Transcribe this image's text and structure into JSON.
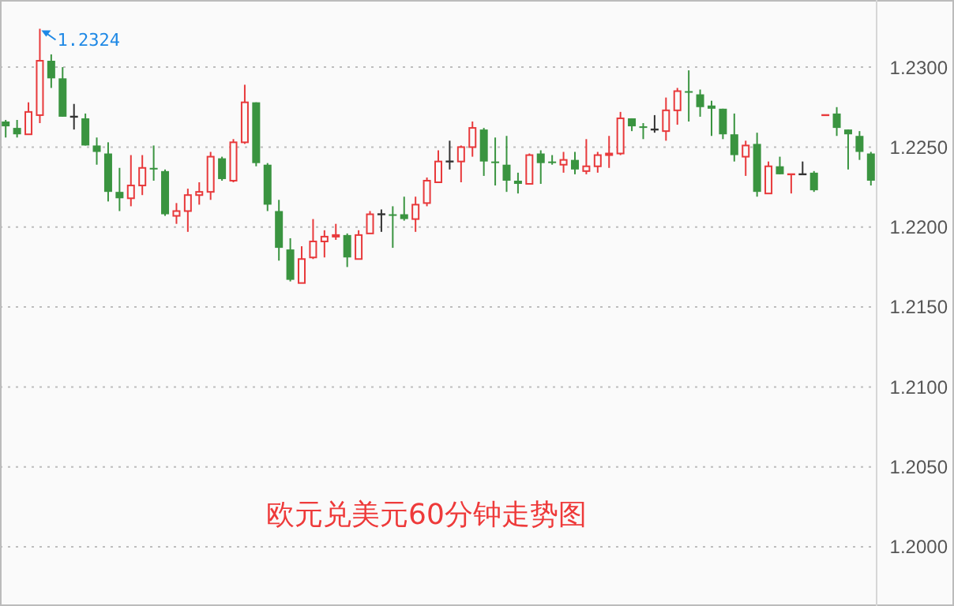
{
  "chart_data": {
    "type": "candlestick",
    "title": "欧元兑美元60分钟走势图",
    "categories": [
      null,
      null,
      null,
      null,
      null,
      null,
      null,
      null,
      null,
      null,
      null,
      null,
      null,
      null,
      null,
      null,
      null,
      null,
      null,
      null,
      null,
      null,
      null,
      null,
      null,
      null,
      null,
      null,
      null,
      null,
      null,
      null,
      null,
      null,
      null,
      null,
      null,
      null,
      null,
      null,
      null,
      null,
      null,
      null,
      null,
      null,
      null,
      null,
      null,
      null,
      null,
      null,
      null,
      null,
      null,
      null,
      null,
      null,
      null,
      null,
      null,
      null,
      null,
      null,
      null,
      null,
      null,
      null,
      null,
      null,
      null,
      null,
      null,
      null,
      null,
      null,
      null
    ],
    "ohlc": [
      [
        1.2266,
        1.2267,
        1.2256,
        1.2263
      ],
      [
        1.2262,
        1.2267,
        1.2256,
        1.2258
      ],
      [
        1.2258,
        1.2278,
        1.2258,
        1.2272
      ],
      [
        1.227,
        1.2324,
        1.2265,
        1.2304
      ],
      [
        1.2304,
        1.2308,
        1.2287,
        1.2293
      ],
      [
        1.2293,
        1.23,
        1.2269,
        1.2269
      ],
      [
        1.2269,
        1.2277,
        1.2261,
        1.2269
      ],
      [
        1.2268,
        1.2271,
        1.2251,
        1.2251
      ],
      [
        1.2251,
        1.2256,
        1.2239,
        1.2247
      ],
      [
        1.2246,
        1.2253,
        1.2216,
        1.2222
      ],
      [
        1.2222,
        1.2237,
        1.221,
        1.2218
      ],
      [
        1.2218,
        1.2245,
        1.2213,
        1.2226
      ],
      [
        1.2226,
        1.2245,
        1.222,
        1.2237
      ],
      [
        1.2237,
        1.2251,
        1.2229,
        1.2236
      ],
      [
        1.2235,
        1.2236,
        1.2207,
        1.2208
      ],
      [
        1.2207,
        1.2215,
        1.2202,
        1.221
      ],
      [
        1.221,
        1.2224,
        1.2197,
        1.222
      ],
      [
        1.222,
        1.2228,
        1.2214,
        1.2222
      ],
      [
        1.2222,
        1.2247,
        1.2217,
        1.2244
      ],
      [
        1.2243,
        1.2244,
        1.2229,
        1.223
      ],
      [
        1.2229,
        1.2255,
        1.2228,
        1.2253
      ],
      [
        1.2253,
        1.2289,
        1.2252,
        1.2278
      ],
      [
        1.2278,
        1.2278,
        1.2238,
        1.224
      ],
      [
        1.2239,
        1.224,
        1.221,
        1.2214
      ],
      [
        1.221,
        1.2217,
        1.2179,
        1.2187
      ],
      [
        1.2186,
        1.2193,
        1.2166,
        1.2167
      ],
      [
        1.2165,
        1.2188,
        1.2165,
        1.218
      ],
      [
        1.2181,
        1.2205,
        1.218,
        1.2191
      ],
      [
        1.2191,
        1.2198,
        1.2181,
        1.2194
      ],
      [
        1.2194,
        1.2202,
        1.2192,
        1.2195
      ],
      [
        1.2195,
        1.2196,
        1.2175,
        1.2181
      ],
      [
        1.218,
        1.2198,
        1.218,
        1.2195
      ],
      [
        1.2196,
        1.221,
        1.2196,
        1.2208
      ],
      [
        1.2208,
        1.2211,
        1.2197,
        1.2208
      ],
      [
        1.2208,
        1.2213,
        1.2187,
        1.2207
      ],
      [
        1.2208,
        1.2219,
        1.2204,
        1.2205
      ],
      [
        1.2205,
        1.2219,
        1.2197,
        1.2214
      ],
      [
        1.2215,
        1.2231,
        1.2213,
        1.2229
      ],
      [
        1.2228,
        1.2248,
        1.2228,
        1.2241
      ],
      [
        1.2241,
        1.2254,
        1.2236,
        1.2241
      ],
      [
        1.2241,
        1.2251,
        1.2228,
        1.225
      ],
      [
        1.225,
        1.2266,
        1.2244,
        1.2262
      ],
      [
        1.2261,
        1.2262,
        1.2232,
        1.2241
      ],
      [
        1.2241,
        1.2256,
        1.2226,
        1.224
      ],
      [
        1.2239,
        1.2257,
        1.2222,
        1.2229
      ],
      [
        1.2229,
        1.2234,
        1.2221,
        1.2227
      ],
      [
        1.2227,
        1.2246,
        1.2227,
        1.2245
      ],
      [
        1.2246,
        1.2248,
        1.2227,
        1.224
      ],
      [
        1.2241,
        1.2245,
        1.2239,
        1.224
      ],
      [
        1.2239,
        1.2247,
        1.2234,
        1.2242
      ],
      [
        1.2242,
        1.2247,
        1.2233,
        1.2236
      ],
      [
        1.2235,
        1.2255,
        1.2233,
        1.2238
      ],
      [
        1.2238,
        1.2247,
        1.2234,
        1.2245
      ],
      [
        1.2245,
        1.2257,
        1.2237,
        1.2246
      ],
      [
        1.2246,
        1.2272,
        1.2245,
        1.2268
      ],
      [
        1.2268,
        1.2268,
        1.226,
        1.2263
      ],
      [
        1.2263,
        1.2265,
        1.2255,
        1.2262
      ],
      [
        1.2261,
        1.227,
        1.2259,
        1.2261
      ],
      [
        1.226,
        1.2281,
        1.2254,
        1.2273
      ],
      [
        1.2273,
        1.2287,
        1.2264,
        1.2285
      ],
      [
        1.2285,
        1.2298,
        1.2266,
        1.2284
      ],
      [
        1.2283,
        1.2286,
        1.2269,
        1.2275
      ],
      [
        1.2276,
        1.2279,
        1.2257,
        1.2274
      ],
      [
        1.2274,
        1.2274,
        1.2255,
        1.2258
      ],
      [
        1.2258,
        1.2271,
        1.2241,
        1.2245
      ],
      [
        1.2244,
        1.2254,
        1.2232,
        1.2251
      ],
      [
        1.2252,
        1.2259,
        1.2219,
        1.2222
      ],
      [
        1.2221,
        1.2241,
        1.2221,
        1.2238
      ],
      [
        1.2238,
        1.2244,
        1.2233,
        1.2233
      ],
      [
        1.2233,
        1.2233,
        1.2221,
        1.2233
      ],
      [
        1.2233,
        1.2241,
        1.2233,
        1.2233
      ],
      [
        1.2234,
        1.2235,
        1.2222,
        1.2223
      ],
      [
        1.227,
        1.227,
        1.227,
        1.227
      ],
      [
        1.2271,
        1.2275,
        1.2257,
        1.2262
      ],
      [
        1.2261,
        1.2261,
        1.2236,
        1.2258
      ],
      [
        1.2257,
        1.226,
        1.2242,
        1.2247
      ],
      [
        1.2246,
        1.2247,
        1.2226,
        1.2229
      ]
    ],
    "colors": [
      "#3a9440",
      "#3a9440",
      "#e8393b",
      "#e8393b",
      "#3a9440",
      "#3a9440",
      "#333333",
      "#3a9440",
      "#3a9440",
      "#3a9440",
      "#3a9440",
      "#e8393b",
      "#e8393b",
      "#3a9440",
      "#3a9440",
      "#e8393b",
      "#e8393b",
      "#e8393b",
      "#e8393b",
      "#3a9440",
      "#e8393b",
      "#e8393b",
      "#3a9440",
      "#3a9440",
      "#3a9440",
      "#3a9440",
      "#e8393b",
      "#e8393b",
      "#e8393b",
      "#e8393b",
      "#3a9440",
      "#e8393b",
      "#e8393b",
      "#333333",
      "#3a9440",
      "#3a9440",
      "#e8393b",
      "#e8393b",
      "#e8393b",
      "#333333",
      "#e8393b",
      "#e8393b",
      "#3a9440",
      "#3a9440",
      "#3a9440",
      "#3a9440",
      "#e8393b",
      "#3a9440",
      "#3a9440",
      "#e8393b",
      "#3a9440",
      "#e8393b",
      "#e8393b",
      "#e8393b",
      "#e8393b",
      "#3a9440",
      "#3a9440",
      "#333333",
      "#e8393b",
      "#e8393b",
      "#3a9440",
      "#3a9440",
      "#3a9440",
      "#3a9440",
      "#3a9440",
      "#e8393b",
      "#3a9440",
      "#e8393b",
      "#3a9440",
      "#e8393b",
      "#333333",
      "#3a9440",
      "#e8393b",
      "#3a9440",
      "#3a9440",
      "#3a9440",
      "#3a9440"
    ],
    "ylim": [
      1.1963,
      1.2342
    ],
    "yticks": [
      {
        "value": 1.2,
        "label": "1.2000"
      },
      {
        "value": 1.205,
        "label": "1.2050"
      },
      {
        "value": 1.21,
        "label": "1.2100"
      },
      {
        "value": 1.215,
        "label": "1.2150"
      },
      {
        "value": 1.22,
        "label": "1.2200"
      },
      {
        "value": 1.225,
        "label": "1.2250"
      },
      {
        "value": 1.23,
        "label": "1.2300"
      }
    ],
    "grid": "y",
    "tick_labels": "y",
    "annotations": [
      "1.2324"
    ]
  }
}
